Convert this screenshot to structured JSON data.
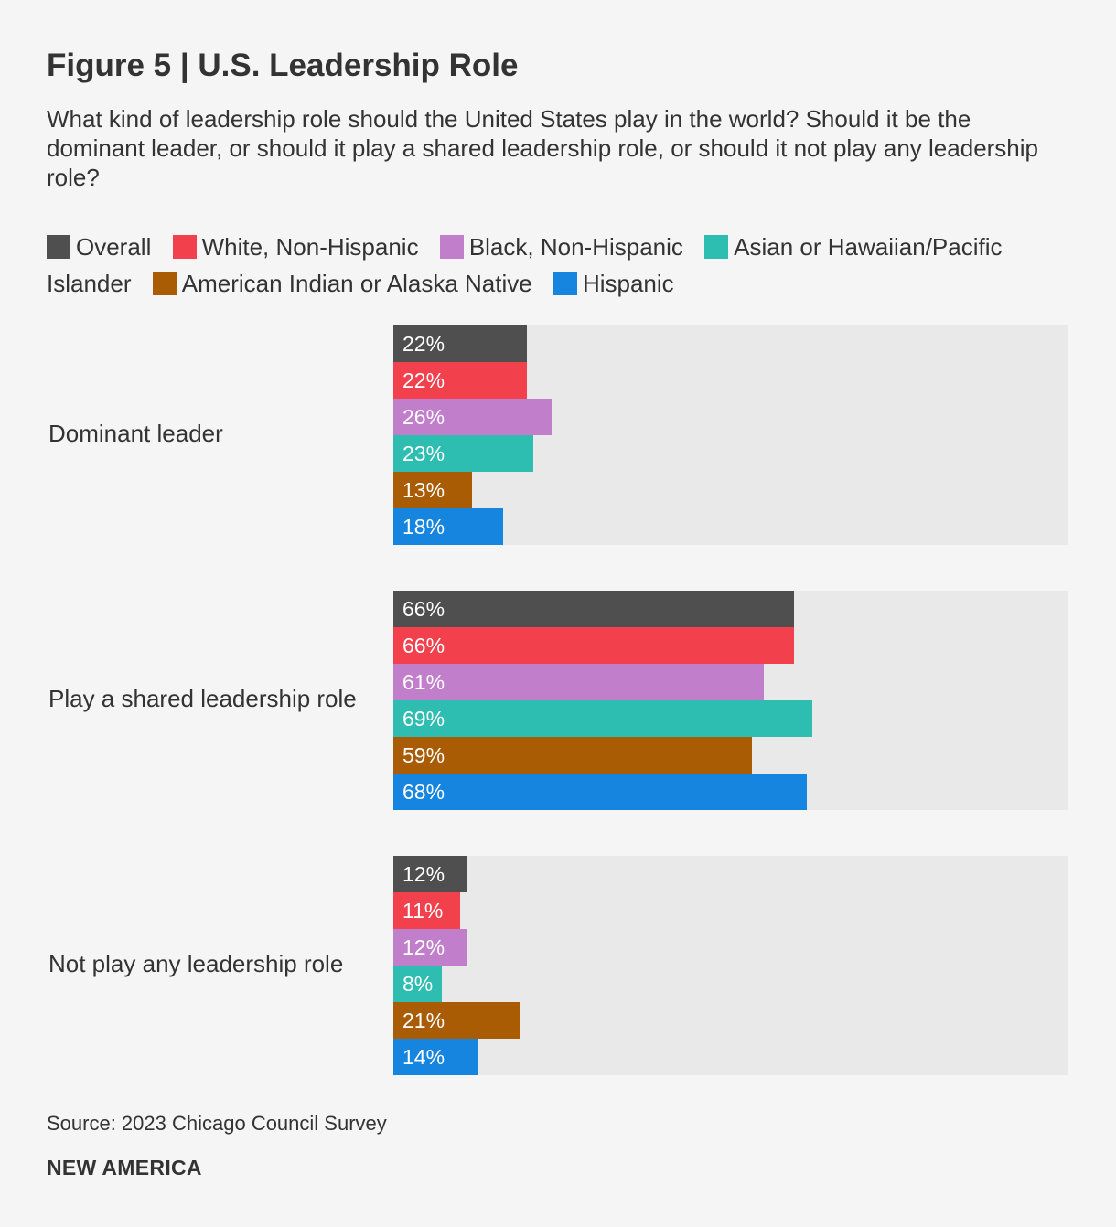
{
  "title": "Figure 5 | U.S. Leadership Role",
  "subtitle": "What kind of leadership role should the United States play in the world? Should it be the dominant leader, or should it play a shared leadership role, or should it not play any leadership role?",
  "source": "Source: 2023 Chicago Council Survey",
  "brand": "NEW AMERICA",
  "chart_data": {
    "type": "bar",
    "orientation": "horizontal",
    "categories": [
      "Dominant leader",
      "Play a shared leadership role",
      "Not play any leadership role"
    ],
    "xlim": [
      0,
      100
    ],
    "unit": "%",
    "legend_position": "top",
    "series": [
      {
        "name": "Overall",
        "color": "#4f4f4f",
        "values": [
          22,
          66,
          12
        ]
      },
      {
        "name": "White, Non-Hispanic",
        "color": "#f2404c",
        "values": [
          22,
          66,
          11
        ]
      },
      {
        "name": "Black, Non-Hispanic",
        "color": "#c17fcb",
        "values": [
          26,
          61,
          12
        ]
      },
      {
        "name": "Asian or Hawaiian/Pacific Islander",
        "color": "#2ebdb1",
        "values": [
          23,
          69,
          8
        ]
      },
      {
        "name": "American Indian or Alaska Native",
        "color": "#a95c04",
        "values": [
          13,
          59,
          21
        ]
      },
      {
        "name": "Hispanic",
        "color": "#1585e0",
        "values": [
          18,
          68,
          14
        ]
      }
    ],
    "value_labels": [
      [
        "22%",
        "22%",
        "26%",
        "23%",
        "13%",
        "18%"
      ],
      [
        "66%",
        "66%",
        "61%",
        "69%",
        "59%",
        "68%"
      ],
      [
        "12%",
        "11%",
        "12%",
        "8%",
        "21%",
        "14%"
      ]
    ]
  }
}
